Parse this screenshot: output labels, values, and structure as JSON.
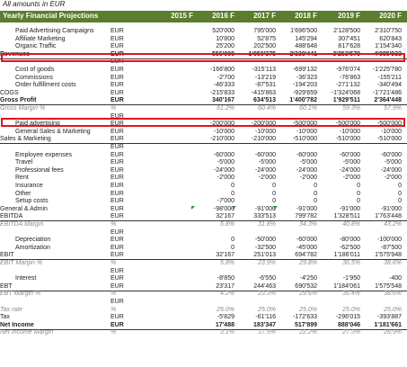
{
  "caption": "All amounts in EUR",
  "header": {
    "title": "Yearly Financial Projections",
    "years": [
      "2015 F",
      "2016 F",
      "2017 F",
      "2018 F",
      "2019 F",
      "2020 F"
    ]
  },
  "rows": [
    {
      "label": "Paid Advertising Campaigns",
      "unit": "EUR",
      "values": [
        "",
        "520'000",
        "795'000",
        "1'696'500",
        "2'128'500",
        "2'310'750"
      ]
    },
    {
      "label": "Affiliate Marketing",
      "unit": "EUR",
      "values": [
        "",
        "10'800",
        "52'875",
        "145'294",
        "307'451",
        "620'843"
      ]
    },
    {
      "label": "Organic Traffic",
      "unit": "EUR",
      "values": [
        "",
        "25'200",
        "202'500",
        "488'648",
        "817'628",
        "1'154'340"
      ]
    },
    {
      "label": "Revenues",
      "unit": "EUR",
      "values": [
        "",
        "556'000",
        "1'050'375",
        "2'330'441",
        "3'253'579",
        "4'085'933"
      ]
    },
    {
      "label": "",
      "unit": "EUR",
      "values": [
        "",
        "",
        "",
        "",
        "",
        ""
      ]
    },
    {
      "label": "Cost of goods",
      "unit": "EUR",
      "values": [
        "",
        "-166'800",
        "-315'113",
        "-699'132",
        "-976'074",
        "-1'225'780"
      ]
    },
    {
      "label": "Commissions",
      "unit": "EUR",
      "values": [
        "",
        "-2'700",
        "-13'219",
        "-36'323",
        "-76'863",
        "-155'211"
      ]
    },
    {
      "label": "Order fulfillment costs",
      "unit": "EUR",
      "values": [
        "",
        "-46'333",
        "-87'531",
        "-194'203",
        "-271'132",
        "-340'494"
      ]
    },
    {
      "label": "COGS",
      "unit": "EUR",
      "values": [
        "",
        "-215'833",
        "-415'863",
        "-929'659",
        "-1'324'068",
        "-1'721'486"
      ]
    },
    {
      "label": "Gross Profit",
      "unit": "EUR",
      "values": [
        "",
        "340'167",
        "634'513",
        "1'400'782",
        "1'929'511",
        "2'364'448"
      ]
    },
    {
      "label": "Gross Margin %",
      "unit": "%",
      "values": [
        "",
        "61.2%",
        "60.4%",
        "60.1%",
        "59.3%",
        "57.9%"
      ]
    },
    {
      "label": "",
      "unit": "EUR",
      "values": [
        "",
        "",
        "",
        "",
        "",
        ""
      ]
    },
    {
      "label": "Paid advertising",
      "unit": "EUR",
      "values": [
        "",
        "-200'000",
        "-200'000",
        "-500'000",
        "-500'000",
        "-500'000"
      ]
    },
    {
      "label": "General Sales & Marketing",
      "unit": "EUR",
      "values": [
        "",
        "-10'000",
        "-10'000",
        "-10'000",
        "-10'000",
        "-10'000"
      ]
    },
    {
      "label": "Sales & Marketing",
      "unit": "EUR",
      "values": [
        "",
        "-210'000",
        "-210'000",
        "-510'000",
        "-510'000",
        "-510'000"
      ]
    },
    {
      "label": "",
      "unit": "EUR",
      "values": [
        "",
        "",
        "",
        "",
        "",
        ""
      ]
    },
    {
      "label": "Employee expenses",
      "unit": "EUR",
      "values": [
        "",
        "-60'000",
        "-60'000",
        "-60'000",
        "-60'000",
        "-60'000"
      ]
    },
    {
      "label": "Travel",
      "unit": "EUR",
      "values": [
        "",
        "-5'000",
        "-5'000",
        "-5'000",
        "-5'000",
        "-5'000"
      ]
    },
    {
      "label": "Professional fees",
      "unit": "EUR",
      "values": [
        "",
        "-24'000",
        "-24'000",
        "-24'000",
        "-24'000",
        "-24'000"
      ]
    },
    {
      "label": "Rent",
      "unit": "EUR",
      "values": [
        "",
        "-2'000",
        "-2'000",
        "-2'000",
        "-2'000",
        "-2'000"
      ]
    },
    {
      "label": "Insurance",
      "unit": "EUR",
      "values": [
        "",
        "0",
        "0",
        "0",
        "0",
        "0"
      ]
    },
    {
      "label": "Other",
      "unit": "EUR",
      "values": [
        "",
        "0",
        "0",
        "0",
        "0",
        "0"
      ]
    },
    {
      "label": "Setup costs",
      "unit": "EUR",
      "values": [
        "",
        "-7'000",
        "0",
        "0",
        "0",
        "0"
      ]
    },
    {
      "label": "General & Admin",
      "unit": "EUR",
      "values": [
        "",
        "-98'000",
        "-91'000",
        "-91'000",
        "-91'000",
        "-91'000"
      ]
    },
    {
      "label": "EBITDA",
      "unit": "EUR",
      "values": [
        "",
        "32'167",
        "333'513",
        "799'782",
        "1'328'511",
        "1'763'448"
      ]
    },
    {
      "label": "EBITDA Margin",
      "unit": "%",
      "values": [
        "",
        "5.8%",
        "31.8%",
        "34.3%",
        "40.8%",
        "43.2%"
      ]
    },
    {
      "label": "",
      "unit": "EUR",
      "values": [
        "",
        "",
        "",
        "",
        "",
        ""
      ]
    },
    {
      "label": "Depreciation",
      "unit": "EUR",
      "values": [
        "",
        "0",
        "-50'000",
        "-60'000",
        "-80'000",
        "-100'000"
      ]
    },
    {
      "label": "Amortization",
      "unit": "EUR",
      "values": [
        "",
        "0",
        "-32'500",
        "-45'000",
        "-62'500",
        "-87'500"
      ]
    },
    {
      "label": "EBIT",
      "unit": "EUR",
      "values": [
        "",
        "32'167",
        "251'013",
        "694'782",
        "1'186'011",
        "1'575'948"
      ]
    },
    {
      "label": "EBIT Margin %",
      "unit": "%",
      "values": [
        "",
        "5.8%",
        "23.9%",
        "29.8%",
        "36.5%",
        "38.6%"
      ]
    },
    {
      "label": "",
      "unit": "EUR",
      "values": [
        "",
        "",
        "",
        "",
        "",
        ""
      ]
    },
    {
      "label": "Interest",
      "unit": "EUR",
      "values": [
        "",
        "-8'850",
        "-6'550",
        "-4'250",
        "-1'950",
        "-400"
      ]
    },
    {
      "label": "EBT",
      "unit": "EUR",
      "values": [
        "",
        "23'317",
        "244'463",
        "690'532",
        "1'184'061",
        "1'575'548"
      ]
    },
    {
      "label": "EBT Margin %",
      "unit": "%",
      "values": [
        "",
        "4.2%",
        "23.3%",
        "29.6%",
        "36.4%",
        "38.6%"
      ]
    },
    {
      "label": "",
      "unit": "EUR",
      "values": [
        "",
        "",
        "",
        "",
        "",
        ""
      ]
    },
    {
      "label": "Tax rate",
      "unit": "%",
      "values": [
        "",
        "25.0%",
        "25.0%",
        "25.0%",
        "25.0%",
        "25.0%"
      ]
    },
    {
      "label": "Tax",
      "unit": "EUR",
      "values": [
        "",
        "-5'829",
        "-61'116",
        "-172'633",
        "-296'015",
        "-393'887"
      ]
    },
    {
      "label": "Net Income",
      "unit": "EUR",
      "values": [
        "",
        "17'488",
        "183'347",
        "517'899",
        "888'046",
        "1'181'661"
      ]
    },
    {
      "label": "Net Income Margin",
      "unit": "%",
      "values": [
        "",
        "3.1%",
        "17.5%",
        "22.2%",
        "27.3%",
        "28.9%"
      ]
    }
  ],
  "colors": {
    "header_bg": "#5a7d2e",
    "highlight": "#e0141e",
    "percent_text": "#8a8a8a"
  }
}
